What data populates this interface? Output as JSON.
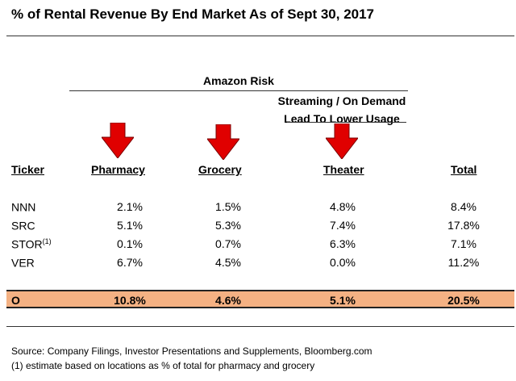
{
  "title": "% of Rental Revenue By End Market As of Sept 30, 2017",
  "group_header": "Amazon Risk",
  "streaming_header": {
    "line1": "Streaming / On Demand",
    "line2": "Lead To Lower Usage"
  },
  "arrow_color": "#e00000",
  "highlight_color": "#f4b183",
  "columns": [
    "Ticker",
    "Pharmacy",
    "Grocery",
    "Theater",
    "Total"
  ],
  "rows": [
    {
      "ticker": "NNN",
      "sup": "",
      "pharmacy": "2.1%",
      "grocery": "1.5%",
      "theater": "4.8%",
      "total": "8.4%"
    },
    {
      "ticker": "SRC",
      "sup": "",
      "pharmacy": "5.1%",
      "grocery": "5.3%",
      "theater": "7.4%",
      "total": "17.8%"
    },
    {
      "ticker": "STOR",
      "sup": "(1)",
      "pharmacy": "0.1%",
      "grocery": "0.7%",
      "theater": "6.3%",
      "total": "7.1%"
    },
    {
      "ticker": "VER",
      "sup": "",
      "pharmacy": "6.7%",
      "grocery": "4.5%",
      "theater": "0.0%",
      "total": "11.2%"
    }
  ],
  "highlight_row": {
    "ticker": "O",
    "pharmacy": "10.8%",
    "grocery": "4.6%",
    "theater": "5.1%",
    "total": "20.5%"
  },
  "footer": {
    "source": "Source: Company Filings, Investor Presentations and Supplements, Bloomberg.com",
    "note": "(1) estimate based on locations as % of total for pharmacy and grocery"
  }
}
